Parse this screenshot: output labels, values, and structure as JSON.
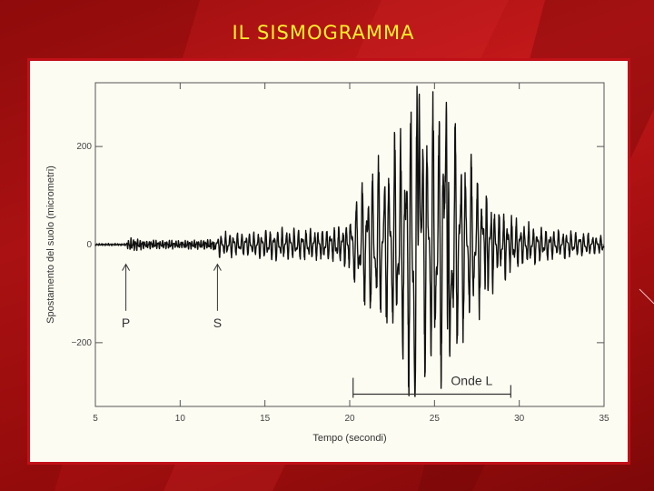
{
  "slide": {
    "title": "IL SISMOGRAMMA"
  },
  "colors": {
    "background": "#b3151a",
    "title": "#fff22a",
    "frame_border": "#c01018",
    "frame_fill": "#fdfcf2",
    "trace": "#111111"
  },
  "chart_data": {
    "type": "line",
    "xlabel": "Tempo  (secondi)",
    "ylabel": "Spostamento del suolo  (micrometri)",
    "xlim": [
      5,
      35
    ],
    "ylim": [
      -330,
      330
    ],
    "xticks": [
      5,
      10,
      15,
      20,
      25,
      30,
      35
    ],
    "yticks": [
      -200,
      0,
      200
    ],
    "ytick_labels": [
      "−200",
      "0",
      "200"
    ],
    "grid": false,
    "annotations": {
      "p_wave": {
        "label": "P",
        "time": 6.8
      },
      "s_wave": {
        "label": "S",
        "time": 12.2
      },
      "surface_waves": {
        "label": "Onde L",
        "start": 20.2,
        "end": 29.5
      }
    },
    "series": [
      {
        "envelope": [
          [
            5.0,
            2
          ],
          [
            6.8,
            2
          ],
          [
            7.0,
            14
          ],
          [
            8.0,
            8
          ],
          [
            10.0,
            8
          ],
          [
            12.0,
            10
          ],
          [
            12.3,
            22
          ],
          [
            14.0,
            22
          ],
          [
            15.0,
            28
          ],
          [
            16.0,
            30
          ],
          [
            18.0,
            30
          ],
          [
            19.5,
            35
          ],
          [
            20.0,
            60
          ],
          [
            21.0,
            140
          ],
          [
            22.0,
            170
          ],
          [
            23.0,
            220
          ],
          [
            23.8,
            310
          ],
          [
            24.5,
            240
          ],
          [
            25.5,
            300
          ],
          [
            26.5,
            200
          ],
          [
            27.5,
            140
          ],
          [
            28.5,
            80
          ],
          [
            30.0,
            45
          ],
          [
            32.0,
            28
          ],
          [
            35.0,
            18
          ]
        ],
        "peaks": [
          {
            "time": 23.85,
            "value": -310
          },
          {
            "time": 24.1,
            "value": 310
          },
          {
            "time": 25.7,
            "value": 290
          },
          {
            "time": 25.9,
            "value": -230
          }
        ]
      }
    ]
  }
}
